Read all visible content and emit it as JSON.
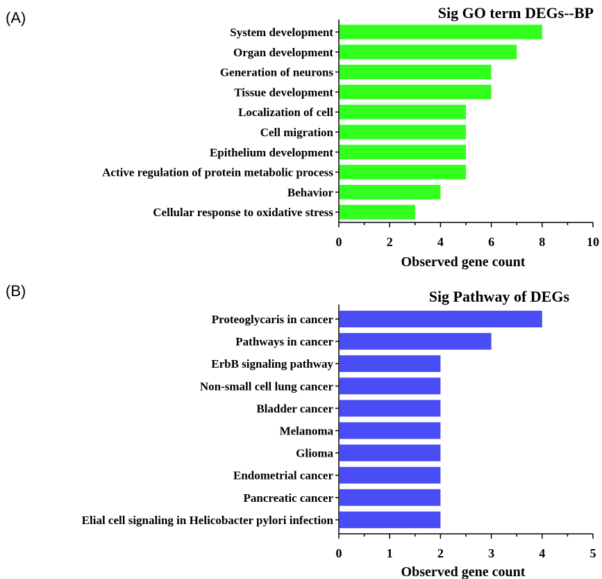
{
  "chart_data": [
    {
      "type": "bar",
      "orientation": "horizontal",
      "panel": "(A)",
      "title": "Sig GO term DEGs--BP",
      "xlabel": "Observed gene count",
      "ylabel": "",
      "xlim": [
        0,
        10
      ],
      "xticks": [
        "0",
        "2",
        "4",
        "6",
        "8",
        "10"
      ],
      "categories": [
        "System development",
        "Organ development",
        "Generation of neurons",
        "Tissue development",
        "Localization of cell",
        "Cell migration",
        "Epithelium development",
        "Active regulation of protein metabolic process",
        "Behavior",
        "Cellular response to oxidative stress"
      ],
      "values": [
        8,
        7,
        6,
        6,
        5,
        5,
        5,
        5,
        4,
        3
      ],
      "color": "#33ff1f",
      "grid": false,
      "legend": "none"
    },
    {
      "type": "bar",
      "orientation": "horizontal",
      "panel": "(B)",
      "title": "Sig Pathway of DEGs",
      "xlabel": "Observed gene count",
      "ylabel": "",
      "xlim": [
        0,
        5
      ],
      "xticks": [
        "0",
        "1",
        "2",
        "3",
        "4",
        "5"
      ],
      "categories": [
        "Proteoglycaris in cancer",
        "Pathways in cancer",
        "ErbB signaling pathway",
        "Non-small cell lung cancer",
        "Bladder cancer",
        "Melanoma",
        "Glioma",
        "Endometrial cancer",
        "Pancreatic cancer",
        "Elial cell signaling in Helicobacter pylori infection"
      ],
      "values": [
        4,
        3,
        2,
        2,
        2,
        2,
        2,
        2,
        2,
        2
      ],
      "color": "#4a4cf5",
      "grid": false,
      "legend": "none"
    }
  ]
}
